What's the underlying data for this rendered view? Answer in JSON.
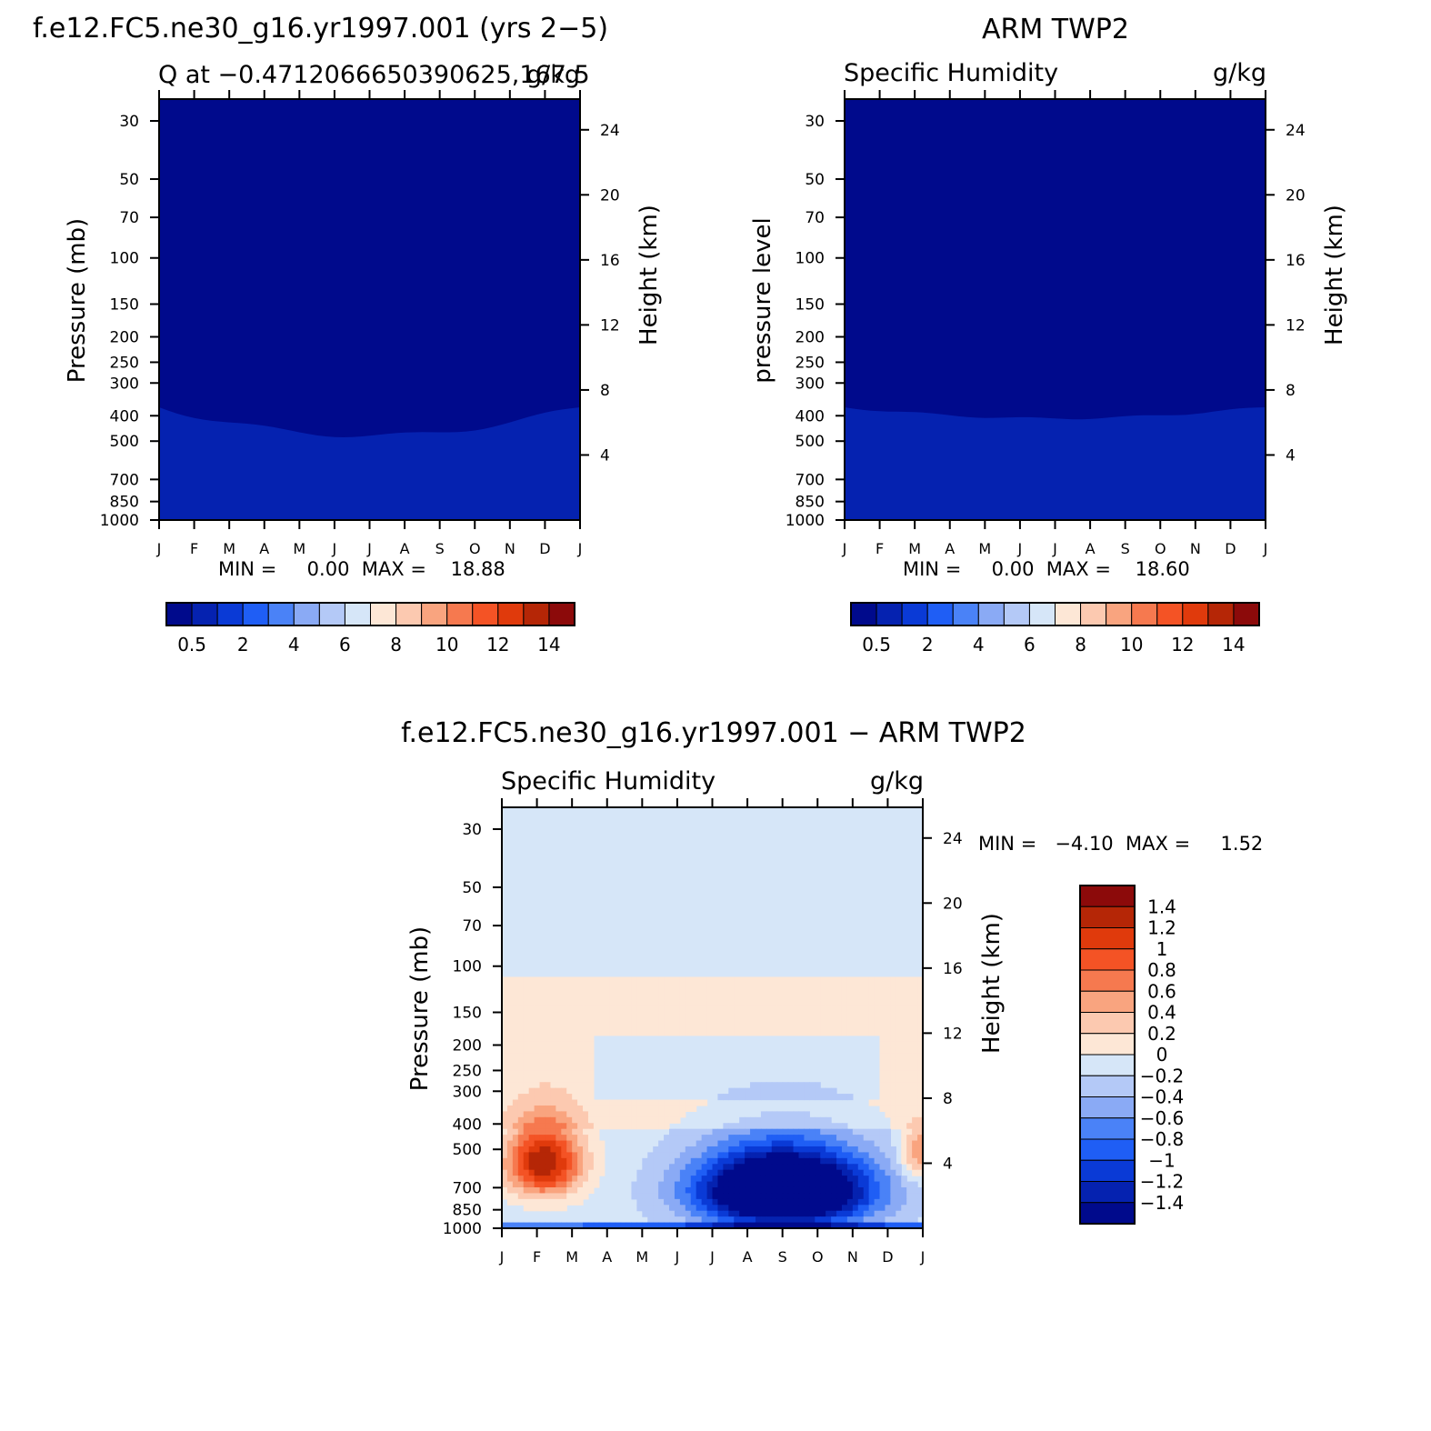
{
  "figure": {
    "panel_model_title": "f.e12.FC5.ne30_g16.yr1997.001 (yrs 2−5)",
    "panel_model_subtitle_left": "Q at −0.4712066650390625,167.5",
    "panel_model_subtitle_right": "g/kg",
    "panel_obs_title": "ARM TWP2",
    "panel_obs_subtitle_left": "Specific Humidity",
    "panel_obs_subtitle_right": "g/kg",
    "panel_diff_title": "f.e12.FC5.ne30_g16.yr1997.001 − ARM TWP2",
    "panel_diff_subtitle_left": "Specific Humidity",
    "panel_diff_subtitle_right": "g/kg",
    "model_stats": "MIN =     0.00  MAX =    18.88",
    "obs_stats": "MIN =     0.00  MAX =    18.60",
    "diff_stats": "MIN =   −4.10  MAX =     1.52"
  },
  "chart_data": [
    {
      "type": "heatmap",
      "name": "model",
      "x": [
        "J",
        "F",
        "M",
        "A",
        "M",
        "J",
        "J",
        "A",
        "S",
        "O",
        "N",
        "D",
        "J"
      ],
      "y_pressure": [
        1000,
        850,
        700,
        500,
        400,
        300,
        250,
        200,
        150,
        100,
        70,
        50,
        30
      ],
      "ylabel": "Pressure (mb)",
      "ylabel_right": "Height (km)",
      "height_ticks": [
        4,
        8,
        12,
        16,
        20,
        24
      ],
      "levels": [
        0.5,
        1,
        2,
        3,
        4,
        5,
        6,
        7,
        8,
        9,
        10,
        11,
        12,
        13,
        14
      ],
      "colorbar_labels": [
        "0.5",
        "2",
        "4",
        "6",
        "8",
        "10",
        "12",
        "14"
      ],
      "min": 0.0,
      "max": 18.88
    },
    {
      "type": "heatmap",
      "name": "obs",
      "x": [
        "J",
        "F",
        "M",
        "A",
        "M",
        "J",
        "J",
        "A",
        "S",
        "O",
        "N",
        "D",
        "J"
      ],
      "y_pressure": [
        1000,
        850,
        700,
        500,
        400,
        300,
        250,
        200,
        150,
        100,
        70,
        50,
        30
      ],
      "ylabel": "pressure level",
      "ylabel_right": "Height (km)",
      "height_ticks": [
        4,
        8,
        12,
        16,
        20,
        24
      ],
      "levels": [
        0.5,
        1,
        2,
        3,
        4,
        5,
        6,
        7,
        8,
        9,
        10,
        11,
        12,
        13,
        14
      ],
      "colorbar_labels": [
        "0.5",
        "2",
        "4",
        "6",
        "8",
        "10",
        "12",
        "14"
      ],
      "min": 0.0,
      "max": 18.6
    },
    {
      "type": "heatmap",
      "name": "difference",
      "x": [
        "J",
        "F",
        "M",
        "A",
        "M",
        "J",
        "J",
        "A",
        "S",
        "O",
        "N",
        "D",
        "J"
      ],
      "y_pressure": [
        1000,
        850,
        700,
        500,
        400,
        300,
        250,
        200,
        150,
        100,
        70,
        50,
        30
      ],
      "ylabel": "Pressure (mb)",
      "ylabel_right": "Height (km)",
      "height_ticks": [
        4,
        8,
        12,
        16,
        20,
        24
      ],
      "levels": [
        -1.4,
        -1.2,
        -1,
        -0.8,
        -0.6,
        -0.4,
        -0.2,
        0,
        0.2,
        0.4,
        0.6,
        0.8,
        1,
        1.2,
        1.4
      ],
      "colorbar_labels": [
        "1.4",
        "1.2",
        "1",
        "0.8",
        "0.6",
        "0.4",
        "0.2",
        "0",
        "−0.2",
        "−0.4",
        "−0.6",
        "−0.8",
        "−1",
        "−1.2",
        "−1.4"
      ],
      "min": -4.1,
      "max": 1.52
    }
  ],
  "colors": {
    "palette16": [
      "#000a8c",
      "#0522b0",
      "#0a3ad6",
      "#1f5ef5",
      "#4a82f7",
      "#8aaaf5",
      "#b4c9f7",
      "#d6e6f8",
      "#fde7d6",
      "#fcc9b0",
      "#f9a47f",
      "#f6794f",
      "#f45325",
      "#e03a0c",
      "#b52606",
      "#8c0a0a"
    ]
  }
}
